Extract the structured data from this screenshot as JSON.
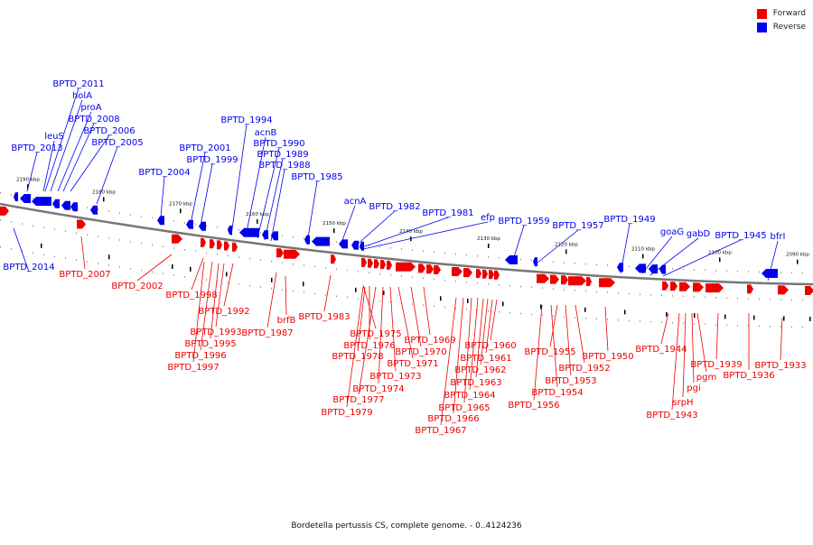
{
  "legend": {
    "forward_label": "Forward",
    "reverse_label": "Reverse",
    "forward_color": "#ee0000",
    "reverse_color": "#0000ee"
  },
  "caption": "Bordetella pertussis CS, complete genome. - 0..4124236",
  "tick_labels": [
    "2190 kbp",
    "2180 kbp",
    "2170 kbp",
    "2160 kbp",
    "2150 kbp",
    "2140 kbp",
    "2130 kbp",
    "2120 kbp",
    "2110 kbp",
    "2100 kbp",
    "2090 kbp"
  ],
  "reverse_labels": [
    "BPTD_2011",
    "holA",
    "proA",
    "BPTD_2008",
    "leuS",
    "BPTD_2006",
    "BPTD_2013",
    "BPTD_2005",
    "BPTD_2004",
    "BPTD_2001",
    "BPTD_1999",
    "BPTD_1994",
    "acnB",
    "BPTD_1990",
    "BPTD_1989",
    "BPTD_1988",
    "BPTD_1985",
    "acnA",
    "BPTD_1982",
    "BPTD_1981",
    "efp",
    "BPTD_1959",
    "BPTD_1957",
    "BPTD_1949",
    "goaG",
    "gabD",
    "BPTD_1945",
    "bfrI",
    "BPTD_2014"
  ],
  "forward_labels": [
    "BPTD_2007",
    "BPTD_2002",
    "BPTD_1998",
    "BPTD_1992",
    "BPTD_1993",
    "BPTD_1995",
    "BPTD_1996",
    "BPTD_1997",
    "brfB",
    "BPTD_1987",
    "BPTD_1983",
    "BPTD_1975",
    "BPTD_1976",
    "BPTD_1978",
    "BPTD_1977",
    "BPTD_1979",
    "BPTD_1974",
    "BPTD_1973",
    "BPTD_1971",
    "BPTD_1970",
    "BPTD_1969",
    "BPTD_1967",
    "BPTD_1966",
    "BPTD_1965",
    "BPTD_1964",
    "BPTD_1963",
    "BPTD_1962",
    "BPTD_1961",
    "BPTD_1960",
    "BPTD_1955",
    "BPTD_1956",
    "BPTD_1954",
    "BPTD_1953",
    "BPTD_1952",
    "BPTD_1950",
    "BPTD_1944",
    "BPTD_1943",
    "srpH",
    "pgi",
    "pgm",
    "BPTD_1939",
    "BPTD_1936",
    "BPTD_1933"
  ]
}
